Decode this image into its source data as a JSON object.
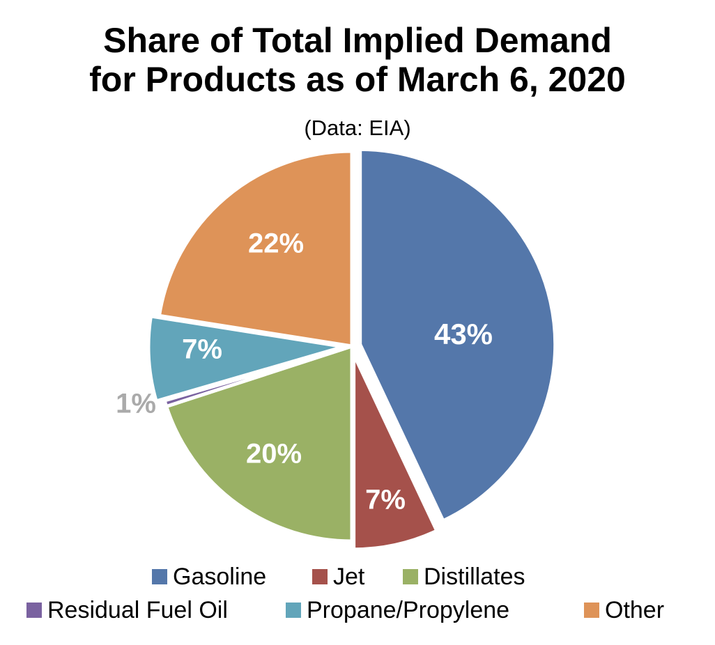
{
  "chart_data": {
    "type": "pie",
    "title_line1": "Share of Total Implied Demand",
    "title_line2": "for Products as of March 6, 2020",
    "subtitle": "(Data: EIA)",
    "legend_placement": "bottom",
    "slices": [
      {
        "name": "Gasoline",
        "value": 43,
        "label": "43%",
        "color": "#5477AA",
        "label_color": "#ffffff",
        "explode": 1
      },
      {
        "name": "Jet",
        "value": 7,
        "label": "7%",
        "color": "#A5514B",
        "label_color": "#ffffff",
        "explode": 1
      },
      {
        "name": "Distillates",
        "value": 20,
        "label": "20%",
        "color": "#9AB165",
        "label_color": "#ffffff",
        "explode": 0
      },
      {
        "name": "Residual Fuel Oil",
        "value": 0.5,
        "label": "1%",
        "color": "#7A62A0",
        "label_color": "#AAAAAA",
        "explode": 0
      },
      {
        "name": "Propane/Propylene",
        "value": 7,
        "label": "7%",
        "color": "#62A5BA",
        "label_color": "#ffffff",
        "explode": 1
      },
      {
        "name": "Other",
        "value": 22.5,
        "label": "22%",
        "color": "#DE9358",
        "label_color": "#ffffff",
        "explode": 0
      }
    ]
  }
}
